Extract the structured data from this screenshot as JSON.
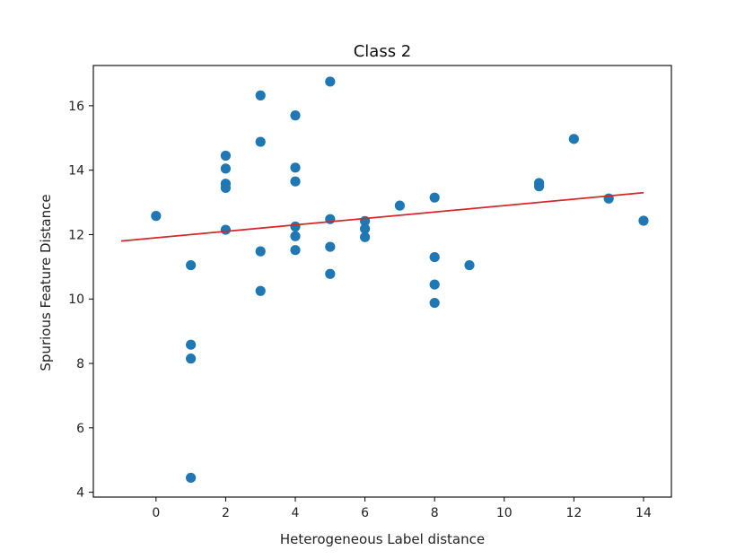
{
  "chart_data": {
    "type": "scatter",
    "title": "Class 2",
    "xlabel": "Heterogeneous Label distance",
    "ylabel": "Spurious Feature Distance",
    "xlim": [
      -1.8,
      14.8
    ],
    "ylim": [
      3.85,
      17.25
    ],
    "xticks": [
      0,
      2,
      4,
      6,
      8,
      10,
      12,
      14
    ],
    "yticks": [
      4,
      6,
      8,
      10,
      12,
      14,
      16
    ],
    "grid": false,
    "points": [
      {
        "x": 0,
        "y": 12.58
      },
      {
        "x": 1,
        "y": 11.05
      },
      {
        "x": 1,
        "y": 8.58
      },
      {
        "x": 1,
        "y": 8.15
      },
      {
        "x": 1,
        "y": 4.45
      },
      {
        "x": 2,
        "y": 14.45
      },
      {
        "x": 2,
        "y": 14.05
      },
      {
        "x": 2,
        "y": 13.58
      },
      {
        "x": 2,
        "y": 13.45
      },
      {
        "x": 2,
        "y": 12.15
      },
      {
        "x": 3,
        "y": 16.32
      },
      {
        "x": 3,
        "y": 14.88
      },
      {
        "x": 3,
        "y": 11.48
      },
      {
        "x": 3,
        "y": 10.25
      },
      {
        "x": 4,
        "y": 15.7
      },
      {
        "x": 4,
        "y": 14.08
      },
      {
        "x": 4,
        "y": 13.65
      },
      {
        "x": 4,
        "y": 12.25
      },
      {
        "x": 4,
        "y": 11.95
      },
      {
        "x": 4,
        "y": 11.52
      },
      {
        "x": 5,
        "y": 16.75
      },
      {
        "x": 5,
        "y": 12.48
      },
      {
        "x": 5,
        "y": 11.62
      },
      {
        "x": 5,
        "y": 10.78
      },
      {
        "x": 6,
        "y": 12.42
      },
      {
        "x": 6,
        "y": 12.18
      },
      {
        "x": 6,
        "y": 11.92
      },
      {
        "x": 7,
        "y": 12.9
      },
      {
        "x": 8,
        "y": 13.15
      },
      {
        "x": 8,
        "y": 11.3
      },
      {
        "x": 8,
        "y": 10.45
      },
      {
        "x": 8,
        "y": 9.88
      },
      {
        "x": 9,
        "y": 11.05
      },
      {
        "x": 11,
        "y": 13.6
      },
      {
        "x": 11,
        "y": 13.5
      },
      {
        "x": 12,
        "y": 14.97
      },
      {
        "x": 13,
        "y": 13.12
      },
      {
        "x": 14,
        "y": 12.43
      }
    ],
    "trend_line": {
      "x": [
        -1,
        14
      ],
      "y": [
        11.8,
        13.3
      ]
    },
    "colors": {
      "points": "#1f77b4",
      "trend_line": "#d62728",
      "axes": "#000000"
    }
  }
}
